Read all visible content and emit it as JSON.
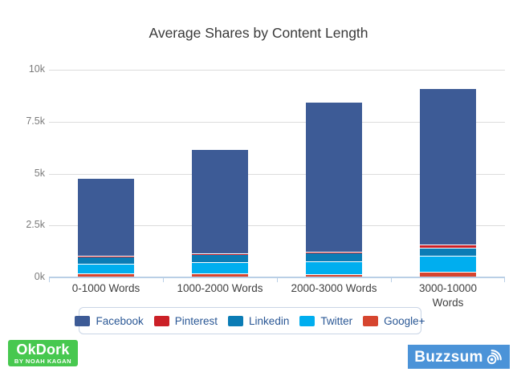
{
  "chart_data": {
    "type": "bar",
    "stacked": true,
    "title": "Average Shares by Content Length",
    "categories": [
      "0-1000 Words",
      "1000-2000 Words",
      "2000-3000 Words",
      "3000-10000\nWords"
    ],
    "series": [
      {
        "name": "Facebook",
        "color": "#3d5b96",
        "values": [
          3715,
          5000,
          7160,
          7510
        ]
      },
      {
        "name": "Pinterest",
        "color": "#cb2027",
        "values": [
          25,
          25,
          30,
          105
        ]
      },
      {
        "name": "Linkedin",
        "color": "#0b7cb5",
        "values": [
          310,
          345,
          390,
          345
        ]
      },
      {
        "name": "Twitter",
        "color": "#00aeef",
        "values": [
          450,
          530,
          580,
          760
        ]
      },
      {
        "name": "Google+",
        "color": "#d6452f",
        "values": [
          100,
          100,
          90,
          180
        ]
      }
    ],
    "stack_order_bottom_to_top": [
      "Google+",
      "Twitter",
      "Linkedin",
      "Pinterest",
      "Facebook"
    ],
    "approx_totals": [
      4600,
      6000,
      8250,
      8900
    ],
    "y_axis": {
      "max": 10000,
      "ticks": [
        {
          "label": "0k",
          "value": 0
        },
        {
          "label": "2.5k",
          "value": 2500
        },
        {
          "label": "5k",
          "value": 5000
        },
        {
          "label": "7.5k",
          "value": 7500
        },
        {
          "label": "10k",
          "value": 10000
        }
      ]
    },
    "grid": true,
    "legend_position": "bottom"
  },
  "logos": {
    "okdork": {
      "title": "OkDork",
      "subtitle": "BY NOAH KAGAN",
      "bg_color": "#47c84f"
    },
    "buzzsumo": {
      "text": "Buzzsum",
      "icon": "sonar-o-icon",
      "bg_color": "#4b93d8"
    }
  },
  "colors": {
    "axis_line": "#b9cfe6",
    "gridline": "#dcdcdc",
    "legend_border": "#c9d5e6",
    "legend_text": "#2a5795"
  }
}
